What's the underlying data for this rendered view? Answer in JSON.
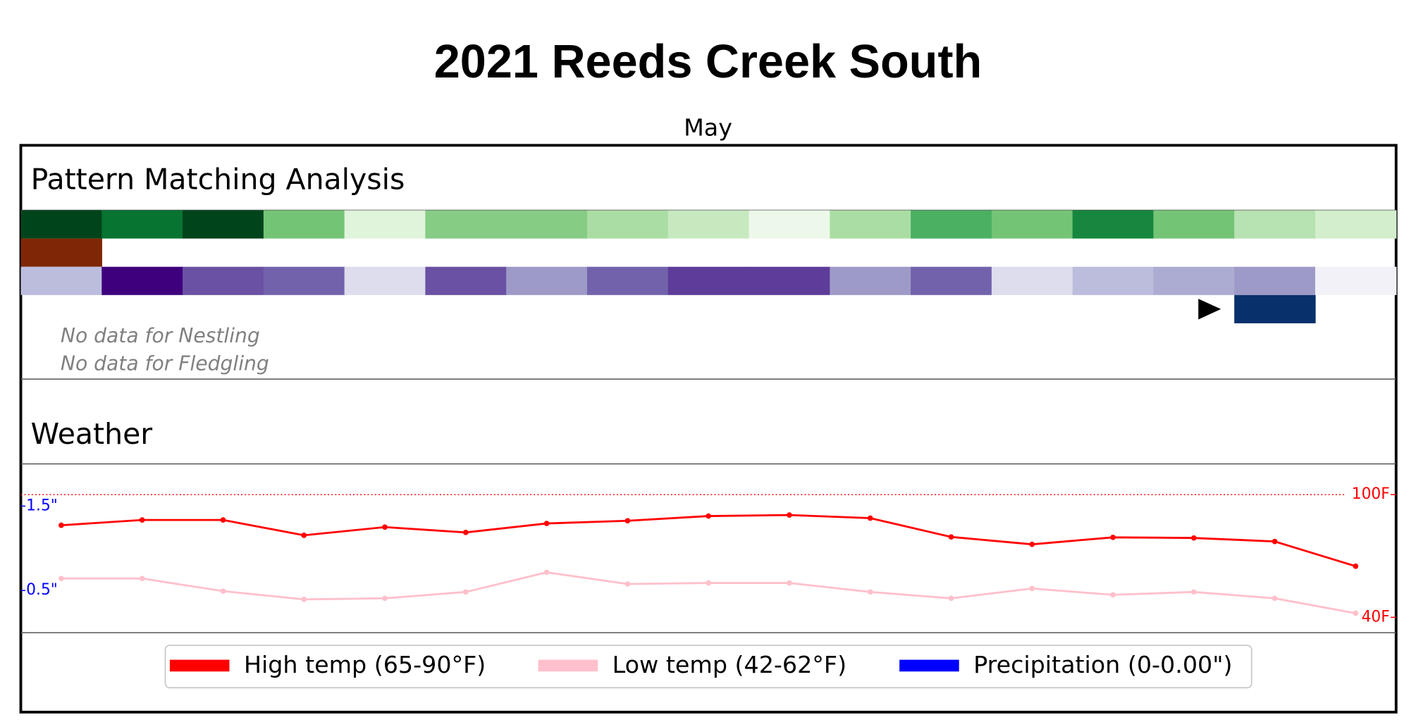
{
  "title": "2021 Reeds Creek South",
  "subtitle": "May",
  "pattern_section": {
    "title": "Pattern Matching Analysis",
    "rows": [
      {
        "colors": [
          "#00441b",
          "#087432",
          "#00441b",
          "#74c476",
          "#e0f3db",
          "#86cc85",
          "#86cc85",
          "#aadda4",
          "#c7e9c0",
          "#edf8ea",
          "#aadda4",
          "#4bb062",
          "#74c476",
          "#17873f",
          "#74c476",
          "#b7e2b1",
          "#d3eecd"
        ]
      },
      {
        "colors": [
          "#7f2704",
          null,
          null,
          null,
          null,
          null,
          null,
          null,
          null,
          null,
          null,
          null,
          null,
          null,
          null,
          null,
          null
        ]
      },
      {
        "colors": [
          "#bcbddc",
          "#3f007d",
          "#6a51a3",
          "#7262ac",
          "#dedded",
          "#6a51a3",
          "#9e9ac8",
          "#7262ac",
          "#5e3c99",
          "#5e3c99",
          "#9e9ac8",
          "#7262ac",
          "#dedded",
          "#bcbddc",
          "#acacd2",
          "#9e9ac8",
          "#f2f1f7"
        ]
      },
      {
        "colors": [
          null,
          null,
          null,
          null,
          null,
          null,
          null,
          null,
          null,
          null,
          null,
          null,
          null,
          null,
          null,
          "#08306b",
          null
        ]
      }
    ],
    "notes": [
      "No data for Nestling",
      "No data for Fledgling"
    ]
  },
  "chart_data": {
    "type": "line",
    "title": "Weather",
    "series": [
      {
        "name": "High temp (65-90°F)",
        "color": "#ff0000",
        "axis": "y2",
        "values": [
          85,
          87.6,
          87.6,
          80.1,
          84.1,
          81.5,
          85.9,
          87.2,
          89.5,
          90,
          88.5,
          79.3,
          75.7,
          79.1,
          78.8,
          77.1,
          65
        ]
      },
      {
        "name": "Low temp (42-62°F)",
        "color": "#ffc0cb",
        "axis": "y2",
        "values": [
          59,
          59,
          52.8,
          48.8,
          49.3,
          52.4,
          62,
          56.3,
          56.8,
          56.8,
          52.4,
          49.3,
          54.1,
          51,
          52.4,
          49.3,
          42
        ]
      },
      {
        "name": "Precipitation (0-0.00\")",
        "color": "#0000ff",
        "type": "bar",
        "values": [
          0,
          0,
          0,
          0,
          0,
          0,
          0,
          0,
          0,
          0,
          0,
          0,
          0,
          0,
          0,
          0,
          0
        ]
      }
    ],
    "ylim": [
      0,
      2
    ],
    "yticks": [
      {
        "value": 1.5,
        "label": "1.5\""
      },
      {
        "value": 0.5,
        "label": "0.5\""
      }
    ],
    "y2lim": [
      32.5,
      115
    ],
    "y2ticks": [
      {
        "value": 100,
        "label": "100F"
      },
      {
        "value": 40,
        "label": "40F"
      }
    ],
    "reference_line": {
      "value": 100,
      "color": "#ff0000"
    }
  }
}
